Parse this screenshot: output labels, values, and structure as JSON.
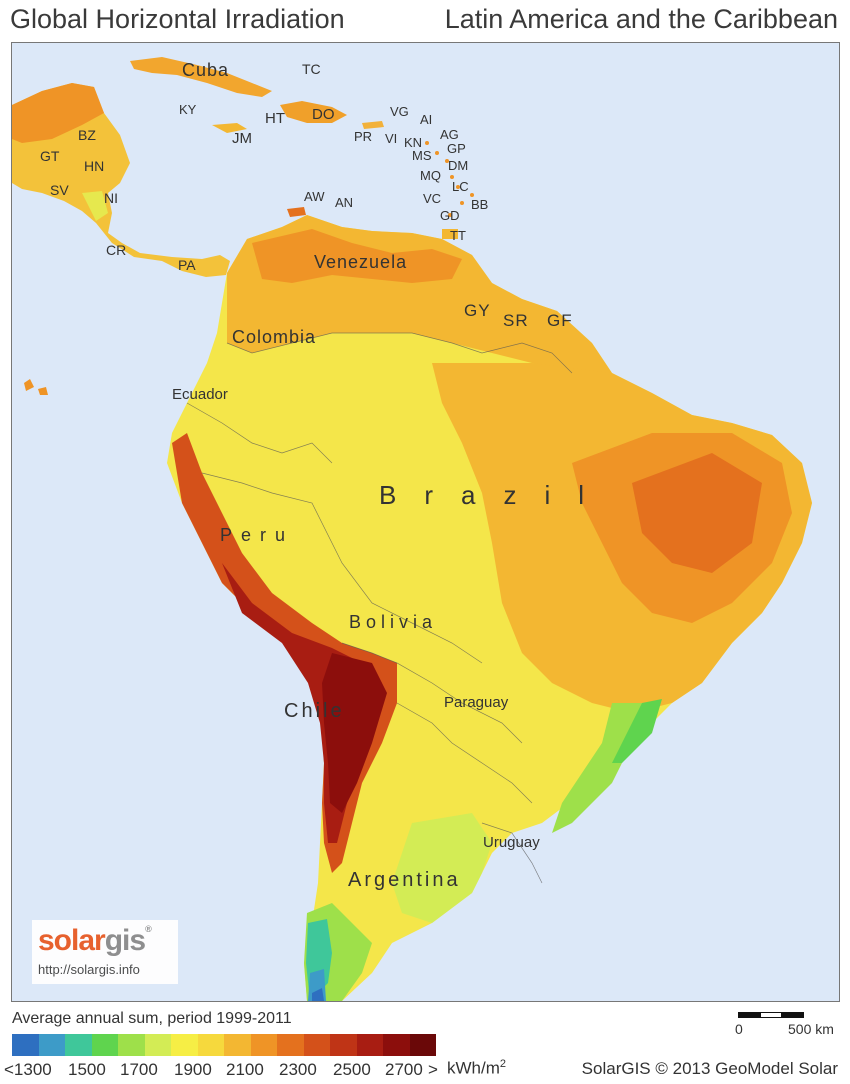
{
  "title": {
    "left": "Global Horizontal Irradiation",
    "right": "Latin America and the Caribbean"
  },
  "map": {
    "countries": {
      "cuba": "Cuba",
      "tc": "TC",
      "ky": "KY",
      "jm": "JM",
      "ht": "HT",
      "do": "DO",
      "pr": "PR",
      "vi": "VI",
      "vg": "VG",
      "ai": "AI",
      "ag": "AG",
      "kn": "KN",
      "gp": "GP",
      "ms": "MS",
      "dm": "DM",
      "mq": "MQ",
      "lc": "LC",
      "vc": "VC",
      "bb": "BB",
      "gd": "GD",
      "tt": "TT",
      "aw": "AW",
      "an": "AN",
      "bz": "BZ",
      "gt": "GT",
      "hn": "HN",
      "sv": "SV",
      "ni": "NI",
      "cr": "CR",
      "pa": "PA",
      "venezuela": "Venezuela",
      "gy": "GY",
      "sr": "SR",
      "gf": "GF",
      "colombia": "Colombia",
      "ecuador": "Ecuador",
      "brazil": "Brazil",
      "peru": "Peru",
      "bolivia": "Bolivia",
      "chile": "Chile",
      "paraguay": "Paraguay",
      "uruguay": "Uruguay",
      "argentina": "Argentina"
    }
  },
  "logo": {
    "brand_solar": "solar",
    "brand_gis": "gis",
    "reg": "®",
    "url": "http://solargis.info"
  },
  "legend": {
    "caption": "Average annual sum, period 1999-2011",
    "colors": [
      "#2e6fc0",
      "#3d9bc8",
      "#3fc79a",
      "#5fd44e",
      "#9ee04a",
      "#d3ec55",
      "#f6ee45",
      "#f6d93d",
      "#f3b732",
      "#ef9426",
      "#e4711e",
      "#d4511a",
      "#bf3416",
      "#a81d12",
      "#8c0e0c",
      "#6a0808"
    ],
    "ticks": [
      "<1300",
      "1500",
      "1700",
      "1900",
      "2100",
      "2300",
      "2500",
      "2700",
      ">"
    ],
    "unit": "kWh/m",
    "unit_sup": "2"
  },
  "scale_bar": {
    "zero": "0",
    "distance": "500 km"
  },
  "copyright": "SolarGIS © 2013 GeoModel Solar"
}
